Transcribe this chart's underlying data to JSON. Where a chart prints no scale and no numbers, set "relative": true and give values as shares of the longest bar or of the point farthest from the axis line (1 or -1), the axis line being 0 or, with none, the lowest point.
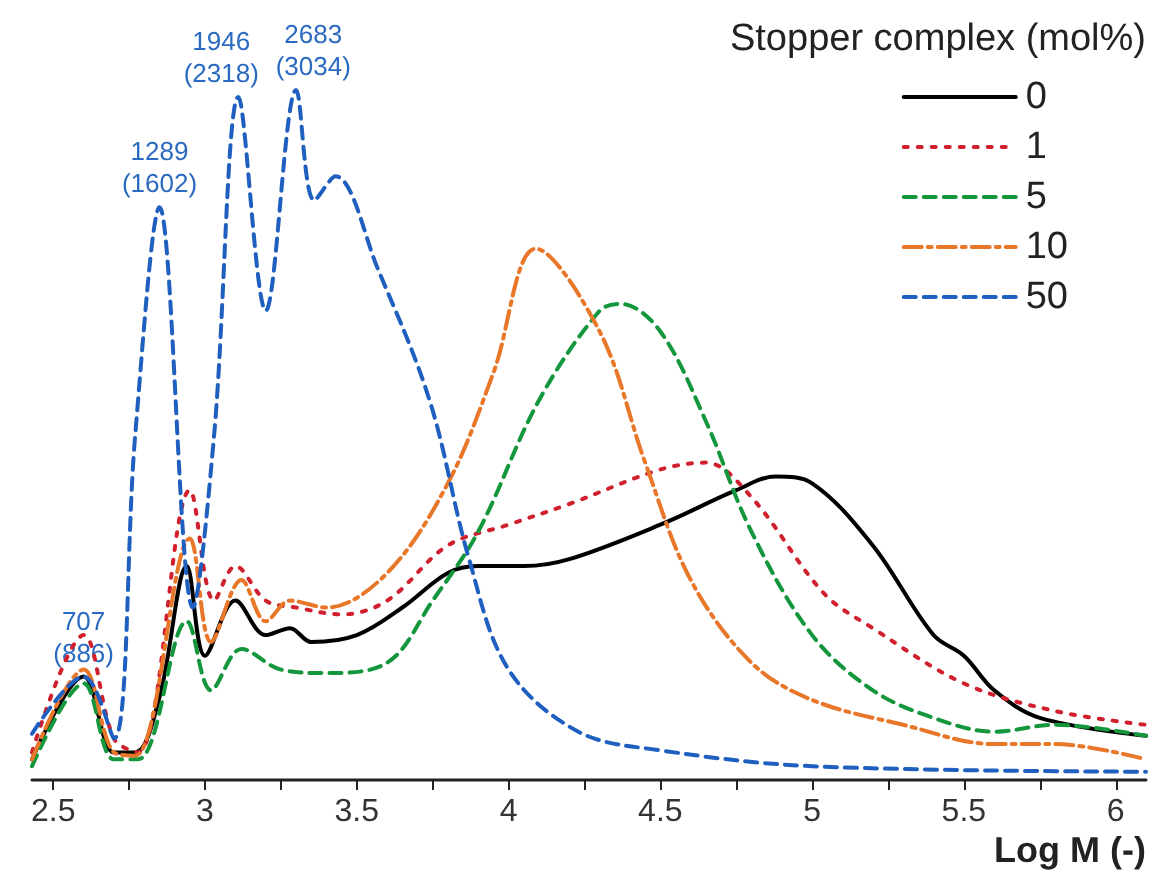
{
  "chart_data": {
    "type": "line",
    "relative": true,
    "xlabel": "Log M (-)",
    "legend_title": "Stopper complex (mol%)",
    "legend": "top right",
    "grid": false,
    "marker": "none",
    "xlim": [
      2.43,
      6.1
    ],
    "xticks": [
      2.5,
      {
        "value": 2.75,
        "label": null
      },
      3.0,
      {
        "value": 3.25,
        "label": null
      },
      3.5,
      {
        "value": 3.75,
        "label": null
      },
      4.0,
      {
        "value": 4.25,
        "label": null
      },
      4.5,
      {
        "value": 4.75,
        "label": null
      },
      5.0,
      {
        "value": 5.25,
        "label": null
      },
      5.5,
      {
        "value": 5.75,
        "label": null
      },
      6.0
    ],
    "annotations": [
      {
        "text": "707\n(886)",
        "x": 2.6,
        "y": 0.15
      },
      {
        "text": "1289\n(1602)",
        "x": 2.85,
        "y": 0.83
      },
      {
        "text": "1946\n(2318)",
        "x": 3.11,
        "y": 0.99
      },
      {
        "text": "2683\n(3034)",
        "x": 3.3,
        "y": 1
      }
    ],
    "series": [
      {
        "name": "0",
        "color": "#000000",
        "line_style": "solid",
        "x": [
          2.43,
          2.6,
          2.7,
          2.77,
          2.85,
          2.94,
          3.0,
          3.1,
          3.2,
          3.28,
          3.35,
          3.5,
          3.65,
          3.8,
          3.9,
          4.05,
          4.2,
          4.5,
          4.75,
          4.88,
          5.0,
          5.2,
          5.4,
          5.5,
          5.6,
          5.75,
          6.1
        ],
        "values": [
          0.03,
          0.15,
          0.04,
          0.04,
          0.12,
          0.31,
          0.18,
          0.26,
          0.21,
          0.22,
          0.2,
          0.21,
          0.25,
          0.3,
          0.31,
          0.31,
          0.32,
          0.37,
          0.42,
          0.44,
          0.43,
          0.34,
          0.21,
          0.18,
          0.13,
          0.09,
          0.064
        ]
      },
      {
        "name": "1",
        "color": "#d0202e",
        "line_style": "dotted",
        "x": [
          2.43,
          2.6,
          2.7,
          2.78,
          2.95,
          3.03,
          3.1,
          3.2,
          3.3,
          3.45,
          3.6,
          3.8,
          4.0,
          4.2,
          4.5,
          4.65,
          4.8,
          5.04,
          5.2,
          5.5,
          5.8,
          6.1
        ],
        "values": [
          0.04,
          0.21,
          0.06,
          0.04,
          0.42,
          0.26,
          0.31,
          0.26,
          0.25,
          0.24,
          0.26,
          0.34,
          0.37,
          0.4,
          0.45,
          0.46,
          0.41,
          0.27,
          0.22,
          0.14,
          0.1,
          0.08
        ]
      },
      {
        "name": "5",
        "color": "#14973c",
        "line_style": "dashed",
        "x": [
          2.43,
          2.6,
          2.7,
          2.78,
          2.94,
          3.02,
          3.12,
          3.25,
          3.4,
          3.6,
          3.75,
          3.9,
          4.1,
          4.3,
          4.37,
          4.5,
          4.65,
          4.8,
          5.0,
          5.2,
          5.4,
          5.6,
          5.8,
          6.1
        ],
        "values": [
          0.02,
          0.14,
          0.03,
          0.03,
          0.23,
          0.13,
          0.19,
          0.16,
          0.155,
          0.17,
          0.26,
          0.36,
          0.55,
          0.68,
          0.69,
          0.65,
          0.52,
          0.36,
          0.21,
          0.13,
          0.09,
          0.07,
          0.08,
          0.064
        ]
      },
      {
        "name": "10",
        "color": "#e8772a",
        "line_style": "dashdot",
        "x": [
          2.43,
          2.6,
          2.7,
          2.77,
          2.95,
          3.02,
          3.12,
          3.2,
          3.28,
          3.4,
          3.6,
          3.8,
          3.95,
          4.09,
          4.3,
          4.45,
          4.6,
          4.8,
          5.0,
          5.3,
          5.6,
          5.8,
          6.1
        ],
        "values": [
          0.03,
          0.16,
          0.04,
          0.035,
          0.35,
          0.2,
          0.29,
          0.23,
          0.26,
          0.25,
          0.3,
          0.43,
          0.59,
          0.77,
          0.65,
          0.46,
          0.29,
          0.17,
          0.116,
          0.08,
          0.052,
          0.052,
          0.03
        ]
      },
      {
        "name": "50",
        "color": "#1f5fbf",
        "line_style": "dashed",
        "x": [
          2.43,
          2.6,
          2.7,
          2.77,
          2.85,
          2.96,
          3.03,
          3.11,
          3.2,
          3.3,
          3.36,
          3.43,
          3.57,
          3.74,
          3.87,
          4.0,
          4.23,
          4.5,
          5.0,
          6.1
        ],
        "values": [
          0.067,
          0.15,
          0.06,
          0.5,
          0.83,
          0.25,
          0.5,
          0.99,
          0.68,
          1,
          0.84,
          0.875,
          0.74,
          0.55,
          0.32,
          0.16,
          0.07,
          0.043,
          0.02,
          0.012
        ]
      }
    ]
  }
}
